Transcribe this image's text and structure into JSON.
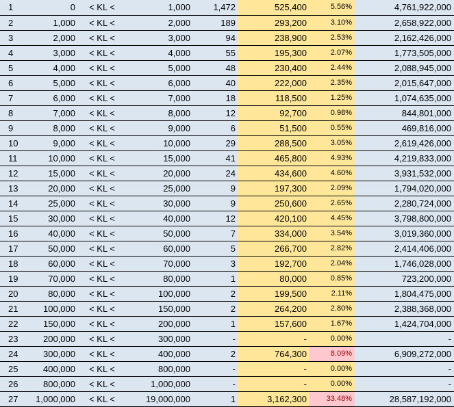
{
  "colors": {
    "row_fill": "#dce6f1",
    "highlight_fill": "#ffe699",
    "alert_fill": "#ffc7ce",
    "alert_text": "#9c0006"
  },
  "operator": "< KL <",
  "rows": [
    {
      "idx": "1",
      "from": "0",
      "to": "1,000",
      "count": "1,472",
      "amount": "525,400",
      "pct": "5.56%",
      "total": "4,761,922,000",
      "alert": false
    },
    {
      "idx": "2",
      "from": "1,000",
      "to": "2,000",
      "count": "189",
      "amount": "293,200",
      "pct": "3.10%",
      "total": "2,658,922,000",
      "alert": false
    },
    {
      "idx": "3",
      "from": "2,000",
      "to": "3,000",
      "count": "94",
      "amount": "238,900",
      "pct": "2.53%",
      "total": "2,162,426,000",
      "alert": false
    },
    {
      "idx": "4",
      "from": "3,000",
      "to": "4,000",
      "count": "55",
      "amount": "195,300",
      "pct": "2.07%",
      "total": "1,773,505,000",
      "alert": false
    },
    {
      "idx": "5",
      "from": "4,000",
      "to": "5,000",
      "count": "48",
      "amount": "230,400",
      "pct": "2.44%",
      "total": "2,088,945,000",
      "alert": false
    },
    {
      "idx": "6",
      "from": "5,000",
      "to": "6,000",
      "count": "40",
      "amount": "222,000",
      "pct": "2.35%",
      "total": "2,015,647,000",
      "alert": false
    },
    {
      "idx": "7",
      "from": "6,000",
      "to": "7,000",
      "count": "18",
      "amount": "118,500",
      "pct": "1.25%",
      "total": "1,074,635,000",
      "alert": false
    },
    {
      "idx": "8",
      "from": "7,000",
      "to": "8,000",
      "count": "12",
      "amount": "92,700",
      "pct": "0.98%",
      "total": "844,801,000",
      "alert": false
    },
    {
      "idx": "9",
      "from": "8,000",
      "to": "9,000",
      "count": "6",
      "amount": "51,500",
      "pct": "0.55%",
      "total": "469,816,000",
      "alert": false
    },
    {
      "idx": "10",
      "from": "9,000",
      "to": "10,000",
      "count": "29",
      "amount": "288,500",
      "pct": "3.05%",
      "total": "2,619,426,000",
      "alert": false
    },
    {
      "idx": "11",
      "from": "10,000",
      "to": "15,000",
      "count": "41",
      "amount": "465,800",
      "pct": "4.93%",
      "total": "4,219,833,000",
      "alert": false
    },
    {
      "idx": "12",
      "from": "15,000",
      "to": "20,000",
      "count": "24",
      "amount": "434,600",
      "pct": "4.60%",
      "total": "3,931,532,000",
      "alert": false
    },
    {
      "idx": "13",
      "from": "20,000",
      "to": "25,000",
      "count": "9",
      "amount": "197,300",
      "pct": "2.09%",
      "total": "1,794,020,000",
      "alert": false
    },
    {
      "idx": "14",
      "from": "25,000",
      "to": "30,000",
      "count": "9",
      "amount": "250,600",
      "pct": "2.65%",
      "total": "2,280,724,000",
      "alert": false
    },
    {
      "idx": "15",
      "from": "30,000",
      "to": "40,000",
      "count": "12",
      "amount": "420,100",
      "pct": "4.45%",
      "total": "3,798,800,000",
      "alert": false
    },
    {
      "idx": "16",
      "from": "40,000",
      "to": "50,000",
      "count": "7",
      "amount": "334,000",
      "pct": "3.54%",
      "total": "3,019,360,000",
      "alert": false
    },
    {
      "idx": "17",
      "from": "50,000",
      "to": "60,000",
      "count": "5",
      "amount": "266,700",
      "pct": "2.82%",
      "total": "2,414,406,000",
      "alert": false
    },
    {
      "idx": "18",
      "from": "60,000",
      "to": "70,000",
      "count": "3",
      "amount": "192,700",
      "pct": "2.04%",
      "total": "1,746,028,000",
      "alert": false
    },
    {
      "idx": "19",
      "from": "70,000",
      "to": "80,000",
      "count": "1",
      "amount": "80,000",
      "pct": "0.85%",
      "total": "723,200,000",
      "alert": false
    },
    {
      "idx": "20",
      "from": "80,000",
      "to": "100,000",
      "count": "2",
      "amount": "199,500",
      "pct": "2.11%",
      "total": "1,804,475,000",
      "alert": false
    },
    {
      "idx": "21",
      "from": "100,000",
      "to": "150,000",
      "count": "2",
      "amount": "264,200",
      "pct": "2.80%",
      "total": "2,388,368,000",
      "alert": false
    },
    {
      "idx": "22",
      "from": "150,000",
      "to": "200,000",
      "count": "1",
      "amount": "157,600",
      "pct": "1.67%",
      "total": "1,424,704,000",
      "alert": false
    },
    {
      "idx": "23",
      "from": "200,000",
      "to": "300,000",
      "count": "-",
      "amount": "-",
      "pct": "0.00%",
      "total": "-",
      "alert": false
    },
    {
      "idx": "24",
      "from": "300,000",
      "to": "400,000",
      "count": "2",
      "amount": "764,300",
      "pct": "8.09%",
      "total": "6,909,272,000",
      "alert": true
    },
    {
      "idx": "25",
      "from": "400,000",
      "to": "800,000",
      "count": "-",
      "amount": "-",
      "pct": "0.00%",
      "total": "-",
      "alert": false
    },
    {
      "idx": "26",
      "from": "800,000",
      "to": "1,000,000",
      "count": "-",
      "amount": "-",
      "pct": "0.00%",
      "total": "-",
      "alert": false
    },
    {
      "idx": "27",
      "from": "1,000,000",
      "to": "19,000,000",
      "count": "1",
      "amount": "3,162,300",
      "pct": "33.48%",
      "total": "28,587,192,000",
      "alert": true
    }
  ]
}
